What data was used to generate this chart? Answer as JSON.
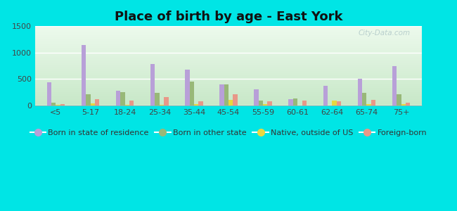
{
  "title": "Place of birth by age - East York",
  "categories": [
    "<5",
    "5-17",
    "18-24",
    "25-34",
    "35-44",
    "45-54",
    "55-59",
    "60-61",
    "62-64",
    "65-74",
    "75+"
  ],
  "series": {
    "Born in state of residence": [
      430,
      1150,
      270,
      780,
      670,
      390,
      300,
      115,
      370,
      500,
      750
    ],
    "Born in other state": [
      55,
      210,
      255,
      235,
      450,
      400,
      95,
      135,
      0,
      240,
      210
    ],
    "Native, outside of US": [
      15,
      35,
      15,
      15,
      25,
      100,
      25,
      0,
      90,
      25,
      25
    ],
    "Foreign-born": [
      25,
      120,
      85,
      150,
      70,
      215,
      75,
      85,
      80,
      100,
      55
    ]
  },
  "colors": {
    "Born in state of residence": "#b8a0d8",
    "Born in other state": "#98b878",
    "Native, outside of US": "#e8d840",
    "Foreign-born": "#e89888"
  },
  "ylim": [
    0,
    1500
  ],
  "yticks": [
    0,
    500,
    1000,
    1500
  ],
  "background_color": "#00e5e5",
  "title_fontsize": 13,
  "legend_fontsize": 8,
  "tick_fontsize": 8
}
